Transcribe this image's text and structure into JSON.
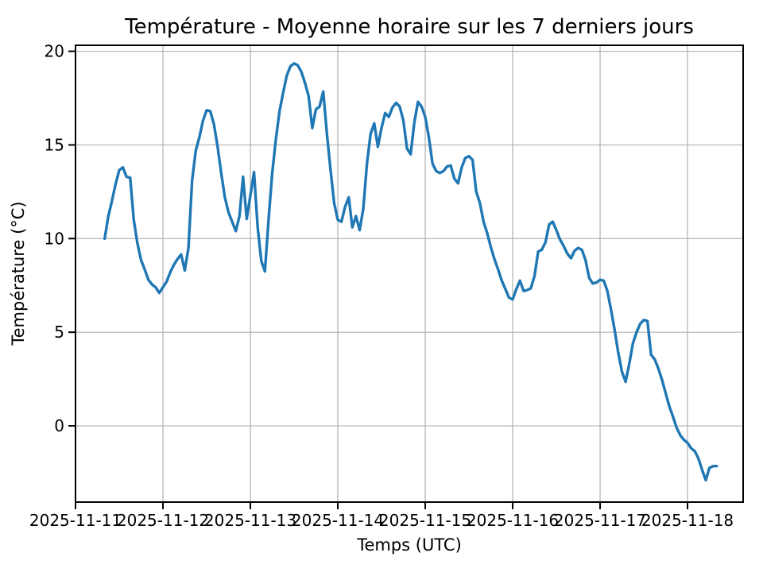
{
  "figure": {
    "title": "Température - Moyenne horaire sur les 7 derniers jours",
    "xlabel": "Temps (UTC)",
    "ylabel": "Température (°C)"
  },
  "chart_data": {
    "type": "line",
    "title": "Température - Moyenne horaire sur les 7 derniers jours",
    "xlabel": "Temps (UTC)",
    "ylabel": "Température (°C)",
    "grid": true,
    "legend": "none",
    "line_color": "#1f77b4",
    "grid_color": "#b0b0b0",
    "spine_color": "#000000",
    "x_tick_labels": [
      "2025-11-11",
      "2025-11-12",
      "2025-11-13",
      "2025-11-14",
      "2025-11-15",
      "2025-11-16",
      "2025-11-17",
      "2025-11-18"
    ],
    "x_tick_days": [
      0,
      1,
      2,
      3,
      4,
      5,
      6,
      7
    ],
    "y_ticks": [
      0,
      5,
      10,
      15,
      20
    ],
    "xlim_days": [
      0,
      7.636
    ],
    "ylim": [
      -4.07,
      20.32
    ],
    "series": [
      {
        "start": "2025-11-11 08:00 UTC",
        "interval_hours": 1,
        "start_hour_offset": 8,
        "values": [
          10.0,
          11.2,
          12.0,
          12.9,
          13.65,
          13.8,
          13.3,
          13.25,
          11.0,
          9.75,
          8.85,
          8.35,
          7.8,
          7.55,
          7.4,
          7.1,
          7.4,
          7.7,
          8.2,
          8.6,
          8.9,
          9.15,
          8.3,
          9.5,
          13.1,
          14.7,
          15.4,
          16.3,
          16.85,
          16.8,
          16.1,
          14.9,
          13.5,
          12.2,
          11.4,
          10.9,
          10.4,
          11.2,
          13.3,
          11.05,
          12.3,
          13.55,
          10.6,
          8.8,
          8.25,
          11.0,
          13.5,
          15.3,
          16.8,
          17.8,
          18.7,
          19.2,
          19.35,
          19.25,
          18.9,
          18.3,
          17.6,
          15.9,
          16.9,
          17.05,
          17.85,
          15.6,
          13.7,
          11.9,
          11.0,
          10.9,
          11.7,
          12.2,
          10.6,
          11.2,
          10.45,
          11.6,
          14.0,
          15.6,
          16.15,
          14.9,
          15.9,
          16.7,
          16.5,
          17.0,
          17.25,
          17.05,
          16.3,
          14.8,
          14.5,
          16.2,
          17.3,
          17.05,
          16.5,
          15.4,
          14.0,
          13.6,
          13.5,
          13.6,
          13.85,
          13.9,
          13.2,
          12.95,
          13.8,
          14.3,
          14.4,
          14.2,
          12.5,
          11.9,
          10.9,
          10.3,
          9.55,
          8.9,
          8.35,
          7.75,
          7.3,
          6.85,
          6.75,
          7.3,
          7.75,
          7.2,
          7.25,
          7.35,
          8.0,
          9.3,
          9.4,
          9.8,
          10.75,
          10.9,
          10.45,
          9.95,
          9.6,
          9.2,
          8.95,
          9.35,
          9.5,
          9.4,
          8.85,
          7.9,
          7.6,
          7.65,
          7.8,
          7.75,
          7.2,
          6.2,
          5.1,
          3.9,
          2.9,
          2.35,
          3.3,
          4.4,
          5.0,
          5.45,
          5.65,
          5.6,
          3.8,
          3.55,
          3.05,
          2.45,
          1.75,
          1.05,
          0.5,
          -0.1,
          -0.5,
          -0.75,
          -0.9,
          -1.2,
          -1.35,
          -1.75,
          -2.35,
          -2.9,
          -2.25,
          -2.15,
          -2.15
        ]
      }
    ]
  }
}
